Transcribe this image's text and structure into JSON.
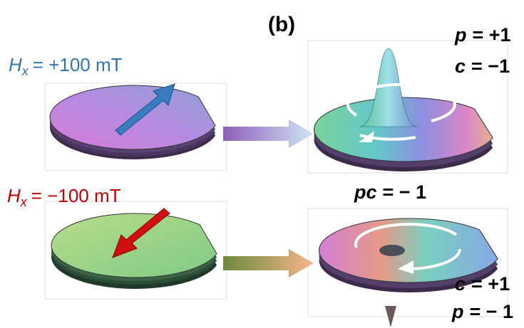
{
  "panel_label": "(b)",
  "top": {
    "field": {
      "symbol": "H",
      "subscript": "x",
      "value": "= +100 mT"
    },
    "state": [
      {
        "symbol": "p",
        "value": "= +1"
      },
      {
        "symbol": "c",
        "value": "= −1"
      }
    ]
  },
  "middle": {
    "symbol": "pc",
    "value": "= − 1"
  },
  "bottom": {
    "field": {
      "symbol": "H",
      "subscript": "x",
      "value": "= −100 mT"
    },
    "state": [
      {
        "symbol": "c",
        "value": "= +1"
      },
      {
        "symbol": "p",
        "value": "= − 1"
      }
    ]
  }
}
